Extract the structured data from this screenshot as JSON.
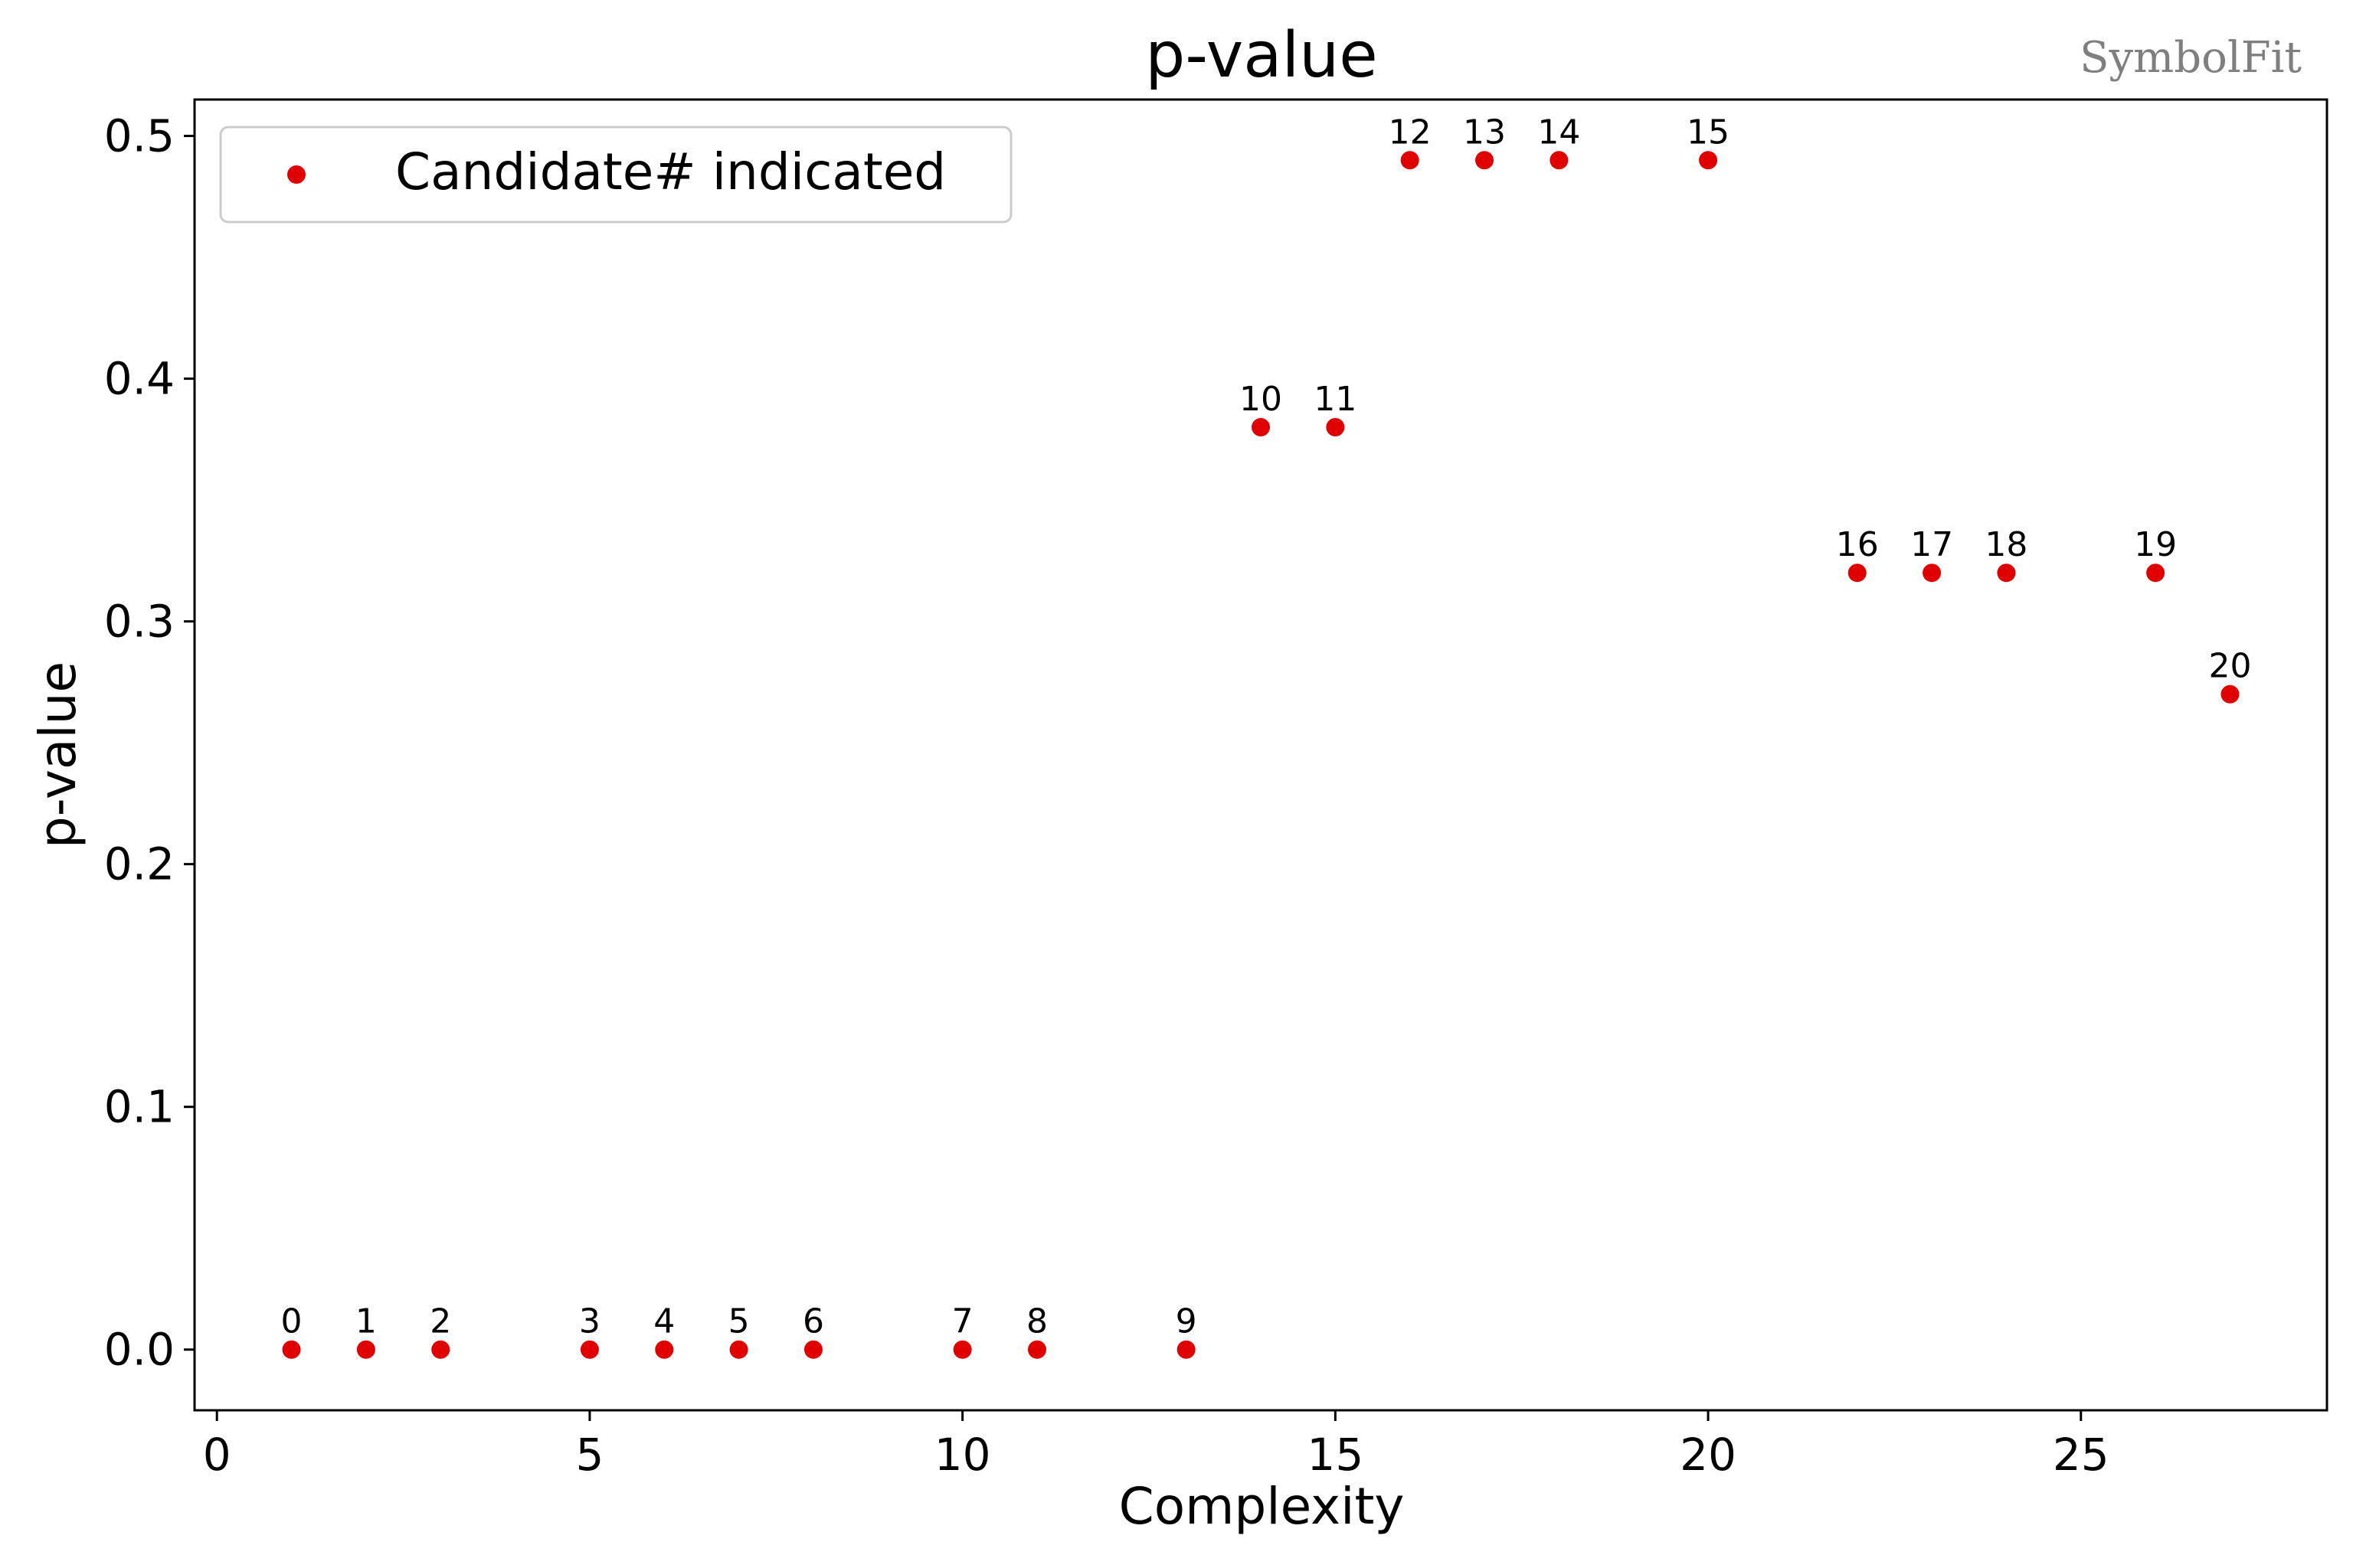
{
  "chart_data": {
    "type": "scatter",
    "title": "p-value",
    "xlabel": "Complexity",
    "ylabel": "p-value",
    "xlim": [
      -0.3,
      28.3
    ],
    "ylim": [
      -0.025,
      0.515
    ],
    "xticks": [
      0,
      5,
      10,
      15,
      20,
      25
    ],
    "xtick_labels": [
      "0",
      "5",
      "10",
      "15",
      "20",
      "25"
    ],
    "yticks": [
      0.0,
      0.1,
      0.2,
      0.3,
      0.4,
      0.5
    ],
    "ytick_labels": [
      "0.0",
      "0.1",
      "0.2",
      "0.3",
      "0.4",
      "0.5"
    ],
    "grid": false,
    "legend": {
      "position": "top-left",
      "entries": [
        "Candidate# indicated"
      ]
    },
    "watermark": "SymbolFit",
    "series": [
      {
        "name": "Candidate# indicated",
        "color": "#e00000",
        "points": [
          {
            "x": 1,
            "y": 0.0,
            "label": "0"
          },
          {
            "x": 2,
            "y": 0.0,
            "label": "1"
          },
          {
            "x": 3,
            "y": 0.0,
            "label": "2"
          },
          {
            "x": 5,
            "y": 0.0,
            "label": "3"
          },
          {
            "x": 6,
            "y": 0.0,
            "label": "4"
          },
          {
            "x": 7,
            "y": 0.0,
            "label": "5"
          },
          {
            "x": 8,
            "y": 0.0,
            "label": "6"
          },
          {
            "x": 10,
            "y": 0.0,
            "label": "7"
          },
          {
            "x": 11,
            "y": 0.0,
            "label": "8"
          },
          {
            "x": 13,
            "y": 0.0,
            "label": "9"
          },
          {
            "x": 14,
            "y": 0.38,
            "label": "10"
          },
          {
            "x": 15,
            "y": 0.38,
            "label": "11"
          },
          {
            "x": 16,
            "y": 0.49,
            "label": "12"
          },
          {
            "x": 17,
            "y": 0.49,
            "label": "13"
          },
          {
            "x": 18,
            "y": 0.49,
            "label": "14"
          },
          {
            "x": 20,
            "y": 0.49,
            "label": "15"
          },
          {
            "x": 22,
            "y": 0.32,
            "label": "16"
          },
          {
            "x": 23,
            "y": 0.32,
            "label": "17"
          },
          {
            "x": 24,
            "y": 0.32,
            "label": "18"
          },
          {
            "x": 26,
            "y": 0.32,
            "label": "19"
          },
          {
            "x": 27,
            "y": 0.27,
            "label": "20"
          }
        ]
      }
    ]
  }
}
